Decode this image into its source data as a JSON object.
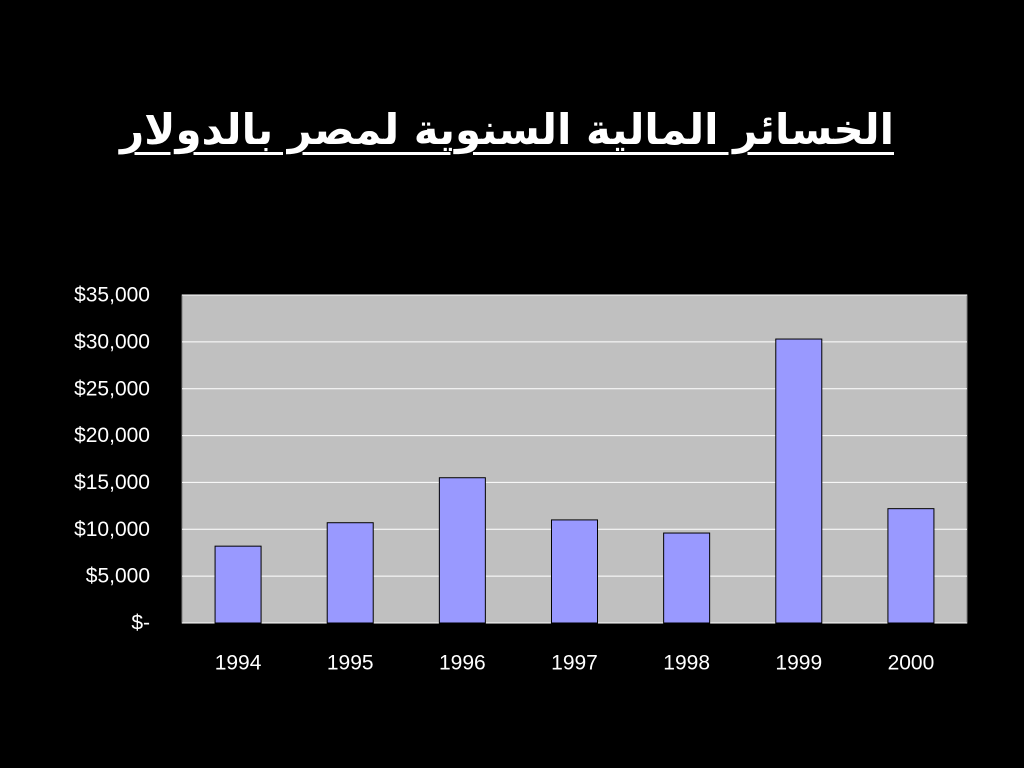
{
  "chart_data": {
    "type": "bar",
    "title": "الخسائر المالية السنوية لمصر بالدولار",
    "categories": [
      "1994",
      "1995",
      "1996",
      "1997",
      "1998",
      "1999",
      "2000"
    ],
    "values": [
      8200,
      10700,
      15500,
      11000,
      9600,
      30300,
      12200
    ],
    "color": "#9999ff",
    "ylim": [
      0,
      35000
    ],
    "yticks": [
      {
        "value": 0,
        "label": "$-"
      },
      {
        "value": 5000,
        "label": "$5,000"
      },
      {
        "value": 10000,
        "label": "$10,000"
      },
      {
        "value": 15000,
        "label": "$15,000"
      },
      {
        "value": 20000,
        "label": "$20,000"
      },
      {
        "value": 25000,
        "label": "$25,000"
      },
      {
        "value": 30000,
        "label": "$30,000"
      },
      {
        "value": 35000,
        "label": "$35,000"
      }
    ],
    "grid": true
  }
}
